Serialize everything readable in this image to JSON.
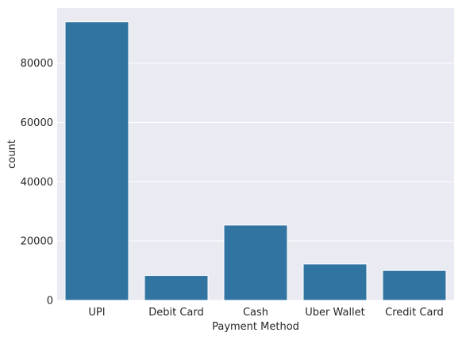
{
  "chart_data": {
    "type": "bar",
    "title": "",
    "xlabel": "Payment Method",
    "ylabel": "count",
    "categories": [
      "UPI",
      "Debit Card",
      "Cash",
      "Uber Wallet",
      "Credit Card"
    ],
    "values": [
      93900,
      8400,
      25400,
      12300,
      10100
    ],
    "yticks": [
      0,
      20000,
      40000,
      60000,
      80000
    ],
    "ylim": [
      0,
      98600
    ],
    "grid": true,
    "legend": "none",
    "colors": {
      "bar": "#3274a1",
      "plot_background": "#eaeaf2",
      "grid": "#ffffff",
      "text": "#262626"
    }
  }
}
